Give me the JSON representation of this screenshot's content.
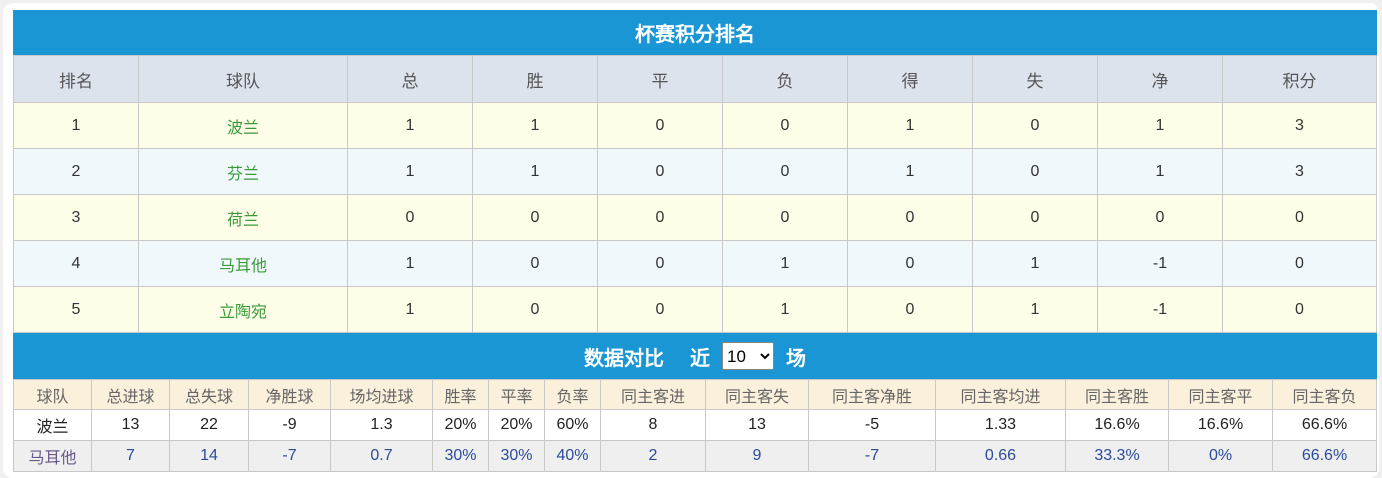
{
  "standings": {
    "title": "杯赛积分排名",
    "headers": [
      "排名",
      "球队",
      "总",
      "胜",
      "平",
      "负",
      "得",
      "失",
      "净",
      "积分"
    ],
    "rows": [
      [
        "1",
        "波兰",
        "1",
        "1",
        "0",
        "0",
        "1",
        "0",
        "1",
        "3"
      ],
      [
        "2",
        "芬兰",
        "1",
        "1",
        "0",
        "0",
        "1",
        "0",
        "1",
        "3"
      ],
      [
        "3",
        "荷兰",
        "0",
        "0",
        "0",
        "0",
        "0",
        "0",
        "0",
        "0"
      ],
      [
        "4",
        "马耳他",
        "1",
        "0",
        "0",
        "1",
        "0",
        "1",
        "-1",
        "0"
      ],
      [
        "5",
        "立陶宛",
        "1",
        "0",
        "0",
        "1",
        "0",
        "1",
        "-1",
        "0"
      ]
    ]
  },
  "comparison": {
    "title": "数据对比",
    "recent_prefix": "近",
    "recent_suffix": "场",
    "recent_selected": "10",
    "headers": [
      "球队",
      "总进球",
      "总失球",
      "净胜球",
      "场均进球",
      "胜率",
      "平率",
      "负率",
      "同主客进",
      "同主客失",
      "同主客净胜",
      "同主客均进",
      "同主客胜",
      "同主客平",
      "同主客负"
    ],
    "rows": [
      [
        "波兰",
        "13",
        "22",
        "-9",
        "1.3",
        "20%",
        "20%",
        "60%",
        "8",
        "13",
        "-5",
        "1.33",
        "16.6%",
        "16.6%",
        "66.6%"
      ],
      [
        "马耳他",
        "7",
        "14",
        "-7",
        "0.7",
        "30%",
        "30%",
        "40%",
        "2",
        "9",
        "-7",
        "0.66",
        "33.3%",
        "0%",
        "66.6%"
      ]
    ]
  },
  "colors": {
    "accent": "#1a96d5",
    "team_green": "#3a9a3a",
    "value_blue": "#2a4a9a"
  }
}
